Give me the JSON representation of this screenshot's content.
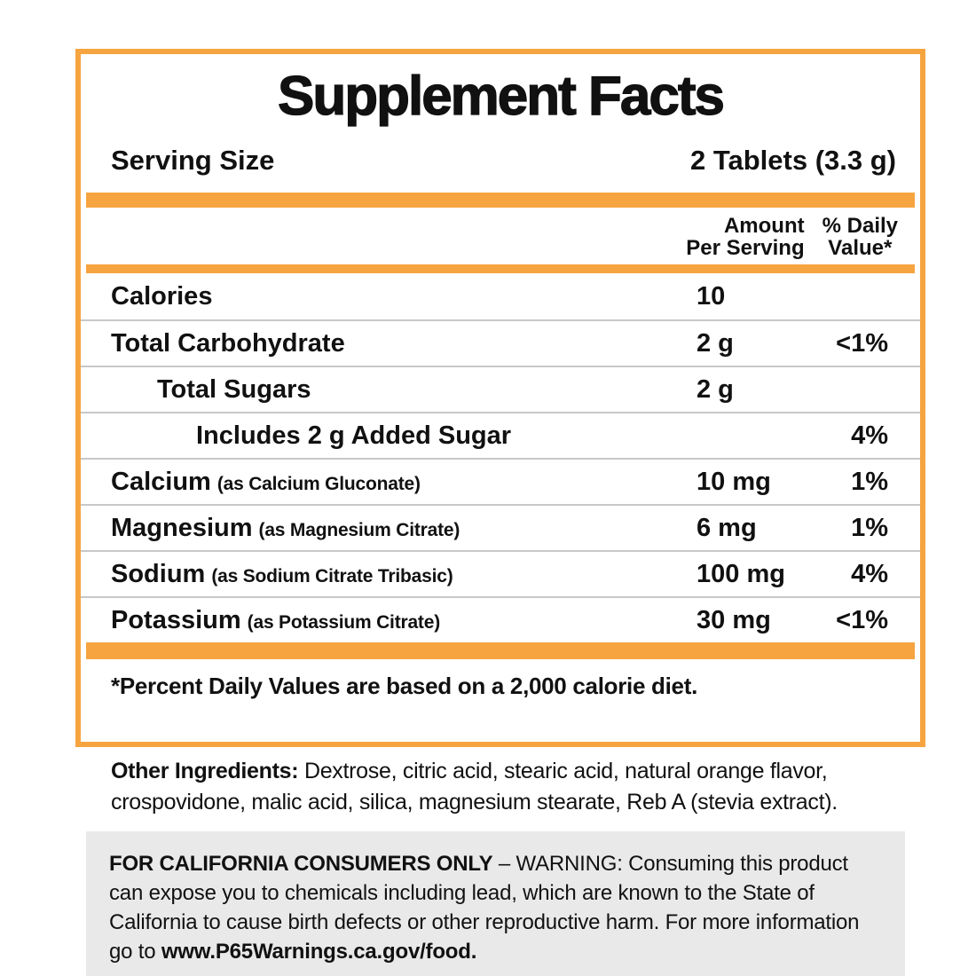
{
  "panel": {
    "title": "Supplement Facts",
    "serving_label": "Serving Size",
    "serving_value": "2 Tablets (3.3 g)",
    "footnote": "*Percent Daily Values are based on a 2,000 calorie diet."
  },
  "table": {
    "headers": {
      "amount_line1": "Amount",
      "amount_line2": "Per Serving",
      "dv_line1": "% Daily",
      "dv_line2": "Value*"
    },
    "rows": [
      {
        "name": "Calories",
        "amount": "10",
        "dv": ""
      },
      {
        "name": "Total Carbohydrate",
        "amount": "2 g",
        "dv": "<1%"
      },
      {
        "name": "Total Sugars",
        "amount": "2 g",
        "dv": ""
      },
      {
        "name": "Includes 2 g Added Sugar",
        "amount": "",
        "dv": "4%"
      },
      {
        "name": "Calcium",
        "detail": "(as Calcium Gluconate)",
        "amount": "10 mg",
        "dv": "1%"
      },
      {
        "name": "Magnesium",
        "detail": "(as Magnesium Citrate)",
        "amount": "6 mg",
        "dv": "1%"
      },
      {
        "name": "Sodium",
        "detail": "(as Sodium Citrate Tribasic)",
        "amount": "100 mg",
        "dv": "4%"
      },
      {
        "name": "Potassium",
        "detail": "(as Potassium Citrate)",
        "amount": "30 mg",
        "dv": "<1%"
      }
    ]
  },
  "other_ingredients": {
    "label": "Other Ingredients:",
    "text": " Dextrose, citric acid, stearic acid, natural orange flavor, crospovidone, malic acid, silica, magnesium stearate, Reb A (stevia extract)."
  },
  "california_warning": {
    "intro": "FOR CALIFORNIA CONSUMERS ONLY",
    "body": " – WARNING: Consuming this product can expose you to chemicals including lead, which are known to the State of California to cause birth defects or other reproductive harm. For more information go to ",
    "url": "www.P65Warnings.ca.gov/food."
  },
  "colors": {
    "accent_orange": "#F6A440",
    "divider_gray": "#c8c8c8",
    "warning_background": "#e9e9e9"
  }
}
